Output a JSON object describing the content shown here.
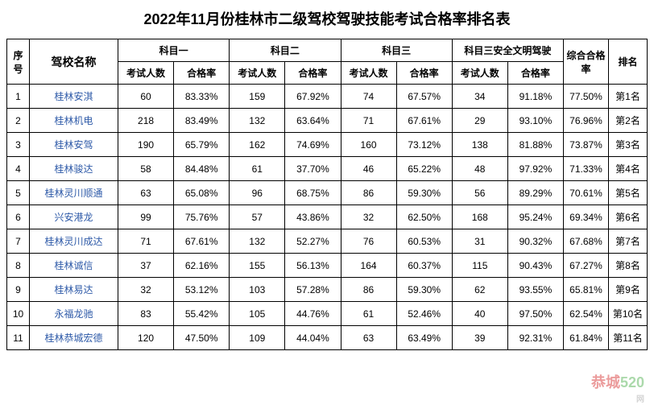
{
  "title": "2022年11月份桂林市二级驾校驾驶技能考试合格率排名表",
  "headers": {
    "seq": "序号",
    "school": "驾校名称",
    "subject1": "科目一",
    "subject2": "科目二",
    "subject3": "科目三",
    "subject3safe": "科目三安全文明驾驶",
    "overall": "综合合格率",
    "rank": "排名",
    "exam_count": "考试人数",
    "pass_rate": "合格率"
  },
  "rows": [
    {
      "seq": "1",
      "name": "桂林安淇",
      "s1n": "60",
      "s1r": "83.33%",
      "s2n": "159",
      "s2r": "67.92%",
      "s3n": "74",
      "s3r": "67.57%",
      "s4n": "34",
      "s4r": "91.18%",
      "overall": "77.50%",
      "rank": "第1名"
    },
    {
      "seq": "2",
      "name": "桂林机电",
      "s1n": "218",
      "s1r": "83.49%",
      "s2n": "132",
      "s2r": "63.64%",
      "s3n": "71",
      "s3r": "67.61%",
      "s4n": "29",
      "s4r": "93.10%",
      "overall": "76.96%",
      "rank": "第2名"
    },
    {
      "seq": "3",
      "name": "桂林安驾",
      "s1n": "190",
      "s1r": "65.79%",
      "s2n": "162",
      "s2r": "74.69%",
      "s3n": "160",
      "s3r": "73.12%",
      "s4n": "138",
      "s4r": "81.88%",
      "overall": "73.87%",
      "rank": "第3名"
    },
    {
      "seq": "4",
      "name": "桂林骏达",
      "s1n": "58",
      "s1r": "84.48%",
      "s2n": "61",
      "s2r": "37.70%",
      "s3n": "46",
      "s3r": "65.22%",
      "s4n": "48",
      "s4r": "97.92%",
      "overall": "71.33%",
      "rank": "第4名"
    },
    {
      "seq": "5",
      "name": "桂林灵川顺通",
      "s1n": "63",
      "s1r": "65.08%",
      "s2n": "96",
      "s2r": "68.75%",
      "s3n": "86",
      "s3r": "59.30%",
      "s4n": "56",
      "s4r": "89.29%",
      "overall": "70.61%",
      "rank": "第5名"
    },
    {
      "seq": "6",
      "name": "兴安港龙",
      "s1n": "99",
      "s1r": "75.76%",
      "s2n": "57",
      "s2r": "43.86%",
      "s3n": "32",
      "s3r": "62.50%",
      "s4n": "168",
      "s4r": "95.24%",
      "overall": "69.34%",
      "rank": "第6名"
    },
    {
      "seq": "7",
      "name": "桂林灵川成达",
      "s1n": "71",
      "s1r": "67.61%",
      "s2n": "132",
      "s2r": "52.27%",
      "s3n": "76",
      "s3r": "60.53%",
      "s4n": "31",
      "s4r": "90.32%",
      "overall": "67.68%",
      "rank": "第7名"
    },
    {
      "seq": "8",
      "name": "桂林诚信",
      "s1n": "37",
      "s1r": "62.16%",
      "s2n": "155",
      "s2r": "56.13%",
      "s3n": "164",
      "s3r": "60.37%",
      "s4n": "115",
      "s4r": "90.43%",
      "overall": "67.27%",
      "rank": "第8名"
    },
    {
      "seq": "9",
      "name": "桂林易达",
      "s1n": "32",
      "s1r": "53.12%",
      "s2n": "103",
      "s2r": "57.28%",
      "s3n": "86",
      "s3r": "59.30%",
      "s4n": "62",
      "s4r": "93.55%",
      "overall": "65.81%",
      "rank": "第9名"
    },
    {
      "seq": "10",
      "name": "永福龙驰",
      "s1n": "83",
      "s1r": "55.42%",
      "s2n": "105",
      "s2r": "44.76%",
      "s3n": "61",
      "s3r": "52.46%",
      "s4n": "40",
      "s4r": "97.50%",
      "overall": "62.54%",
      "rank": "第10名"
    },
    {
      "seq": "11",
      "name": "桂林恭城宏德",
      "s1n": "120",
      "s1r": "47.50%",
      "s2n": "109",
      "s2r": "44.04%",
      "s3n": "63",
      "s3r": "63.49%",
      "s4n": "39",
      "s4r": "92.31%",
      "overall": "61.84%",
      "rank": "第11名"
    }
  ],
  "colors": {
    "border": "#000000",
    "text": "#000000",
    "link": "#2e5aa8",
    "background": "#ffffff"
  },
  "watermark": {
    "part1": "恭城",
    "part2": "520",
    "sub": "网"
  }
}
